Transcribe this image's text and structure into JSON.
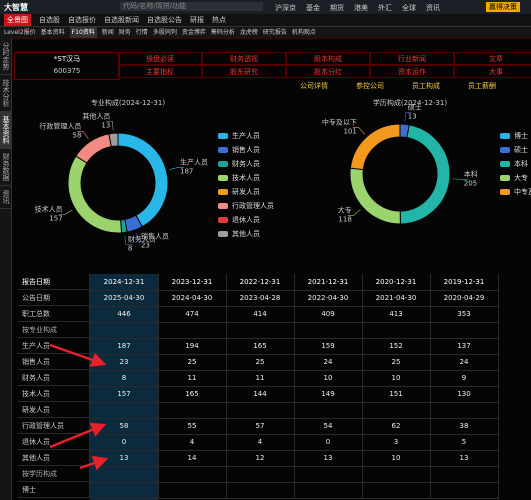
{
  "top_bar": {
    "logo": "大智慧",
    "search": "代码/名称/简拼/功能",
    "menu": [
      "沪深京",
      "基金",
      "期货",
      "港美",
      "外汇",
      "全球",
      "资讯"
    ],
    "slogan": "赢得决策"
  },
  "toolbar": [
    "全景图",
    "自选股",
    "自选报价",
    "自选股新闻",
    "自选股公告",
    "研报",
    "热点"
  ],
  "tabs": [
    "Level2报价",
    "基本资料",
    "F10资料",
    "新闻",
    "财务",
    "行情",
    "多股同列",
    "资金博弈",
    "筹码分析",
    "龙虎榜",
    "研究报告",
    "机构观点"
  ],
  "sidebar": [
    "分时走势",
    "技术分析",
    "基本资料",
    "财务数据",
    "资讯"
  ],
  "stock": {
    "name": "*ST汉马",
    "code": "600375"
  },
  "nav": [
    [
      "操盘必读",
      "财务透视",
      "股本构成",
      "行业新闻",
      "文章"
    ],
    [
      "主要指标",
      "股东研究",
      "股本分红",
      "资本运作",
      "大事"
    ]
  ],
  "sub_tabs": [
    "公司详情",
    "参控公司",
    "员工构成",
    "员工薪酬"
  ],
  "chart_data": [
    {
      "type": "pie",
      "title": "专业构成(2024-12-31)",
      "categories": [
        "生产人员",
        "销售人员",
        "财务人员",
        "技术人员",
        "研发人员",
        "行政管理人员",
        "退休人员",
        "其他人员"
      ],
      "values": [
        187,
        23,
        8,
        157,
        null,
        58,
        0,
        13
      ],
      "colors": [
        "#29b6e8",
        "#3a6fd6",
        "#1aa39a",
        "#9bd46c",
        "#f39a1e",
        "#f28b82",
        "#e53935",
        "#9e9e9e"
      ]
    },
    {
      "type": "pie",
      "title": "学历构成(2024-12-31)",
      "categories": [
        "博士",
        "硕士",
        "本科",
        "大专",
        "中专及以下"
      ],
      "values": [
        null,
        13,
        205,
        118,
        101
      ],
      "colors": [
        "#29b6e8",
        "#3a6fd6",
        "#22b5a8",
        "#9bd46c",
        "#f39a1e"
      ]
    }
  ],
  "table": {
    "columns": [
      "报告日期",
      "2024-12-31",
      "2023-12-31",
      "2022-12-31",
      "2021-12-31",
      "2020-12-31",
      "2019-12-31"
    ],
    "rows": [
      [
        "公告日期",
        "2025-04-30",
        "2024-04-30",
        "2023-04-28",
        "2022-04-30",
        "2021-04-30",
        "2020-04-29"
      ],
      [
        "职工总数",
        "446",
        "474",
        "414",
        "409",
        "413",
        "353"
      ],
      [
        "按专业构成"
      ],
      [
        "生产人员",
        "187",
        "194",
        "165",
        "159",
        "152",
        "137"
      ],
      [
        "销售人员",
        "23",
        "25",
        "25",
        "24",
        "25",
        "24"
      ],
      [
        "财务人员",
        "8",
        "11",
        "11",
        "10",
        "10",
        "9"
      ],
      [
        "技术人员",
        "157",
        "165",
        "144",
        "149",
        "151",
        "130"
      ],
      [
        "研发人员"
      ],
      [
        "行政管理人员",
        "58",
        "55",
        "57",
        "54",
        "62",
        "38"
      ],
      [
        "退休人员",
        "0",
        "4",
        "4",
        "0",
        "3",
        "5"
      ],
      [
        "其他人员",
        "13",
        "14",
        "12",
        "13",
        "10",
        "13"
      ],
      [
        "按学历构成"
      ],
      [
        "博士"
      ]
    ]
  }
}
